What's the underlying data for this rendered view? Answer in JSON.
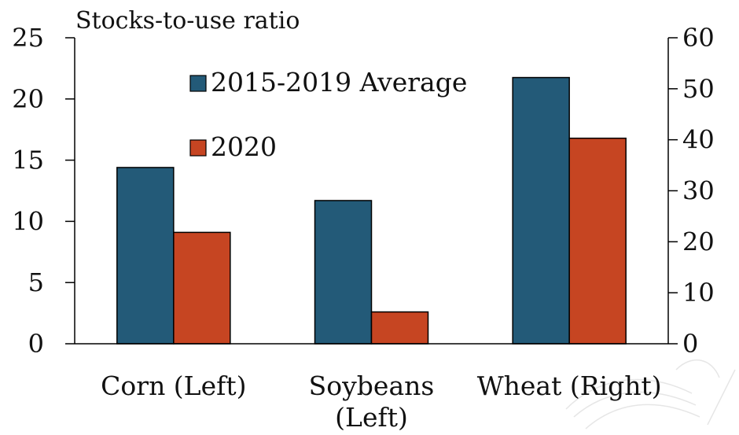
{
  "chart_data": {
    "type": "bar",
    "title": "Stocks-to-use ratio",
    "categories": [
      {
        "lines": [
          "Corn (Left)"
        ],
        "axis": "left"
      },
      {
        "lines": [
          "Soybeans",
          "(Left)"
        ],
        "axis": "left"
      },
      {
        "lines": [
          "Wheat (Right)"
        ],
        "axis": "right"
      }
    ],
    "series": [
      {
        "name": "2015-2019 Average",
        "color": "#235a78",
        "values": [
          14.4,
          11.7,
          52.2
        ]
      },
      {
        "name": "2020",
        "color": "#c64522",
        "values": [
          9.1,
          2.6,
          40.3
        ]
      }
    ],
    "y_left": {
      "range": [
        0,
        25
      ],
      "ticks": [
        "0",
        "5",
        "10",
        "15",
        "20",
        "25"
      ]
    },
    "y_right": {
      "range": [
        0,
        60
      ],
      "ticks": [
        "0",
        "10",
        "20",
        "30",
        "40",
        "50",
        "60"
      ]
    },
    "legend": "top-left, inside plot",
    "grid": false
  }
}
